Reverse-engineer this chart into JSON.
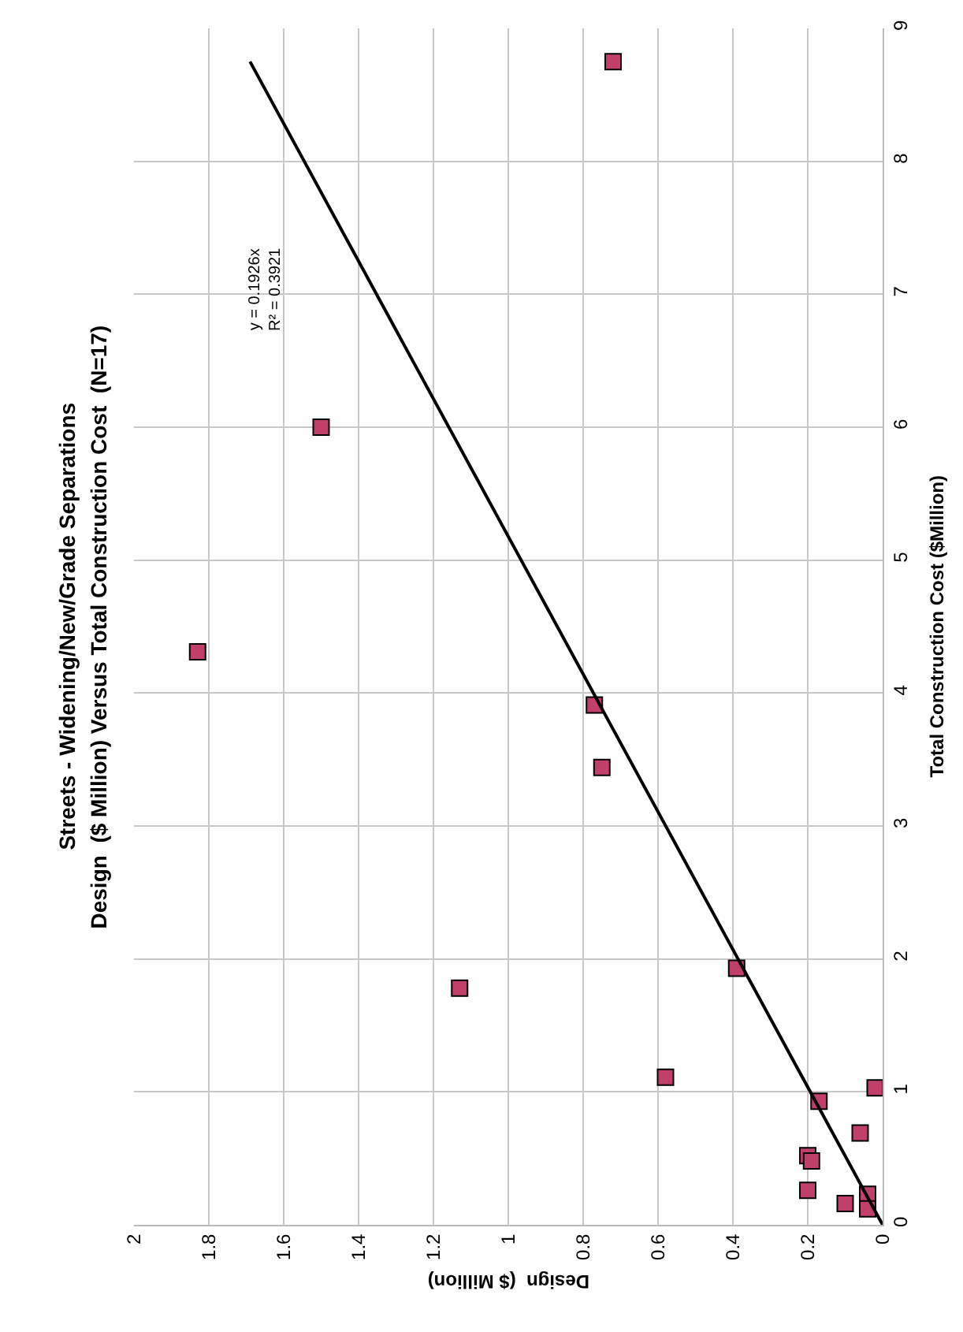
{
  "chart_data": {
    "type": "scatter",
    "title": "Streets - Widening/New/Grade Separations",
    "subtitle": "Design  ($ Million) Versus Total Construction Cost  (N=17)",
    "xlabel": "Design  ($ Million)",
    "ylabel": "Total Construction Cost ($Million)",
    "annotations": [
      "y = 0.1926x\nR² = 0.3921"
    ],
    "xlim": [
      2,
      0
    ],
    "xticks": [
      2,
      1.8,
      1.6,
      1.4,
      1.2,
      1,
      0.8,
      0.6,
      0.4,
      0.2,
      0
    ],
    "ylim": [
      0,
      9
    ],
    "yticks": [
      0,
      1,
      2,
      3,
      4,
      5,
      6,
      7,
      8,
      9
    ],
    "grid": true,
    "legend": false,
    "series": [
      {
        "color": "#c0406a",
        "marker": "square",
        "x": [
          0.72,
          1.5,
          1.83,
          0.77,
          0.75,
          0.39,
          1.13,
          0.58,
          0.02,
          0.17,
          0.06,
          0.2,
          0.19,
          0.2,
          0.1,
          0.04,
          0.04
        ],
        "values": [
          8.75,
          6.0,
          4.31,
          3.91,
          3.44,
          1.93,
          1.78,
          1.11,
          1.03,
          0.93,
          0.69,
          0.52,
          0.48,
          0.26,
          0.16,
          0.23,
          0.12
        ]
      },
      {
        "type": "line",
        "color": "#000000",
        "x": [
          0,
          1.69
        ],
        "values": [
          0,
          8.75
        ]
      }
    ]
  }
}
